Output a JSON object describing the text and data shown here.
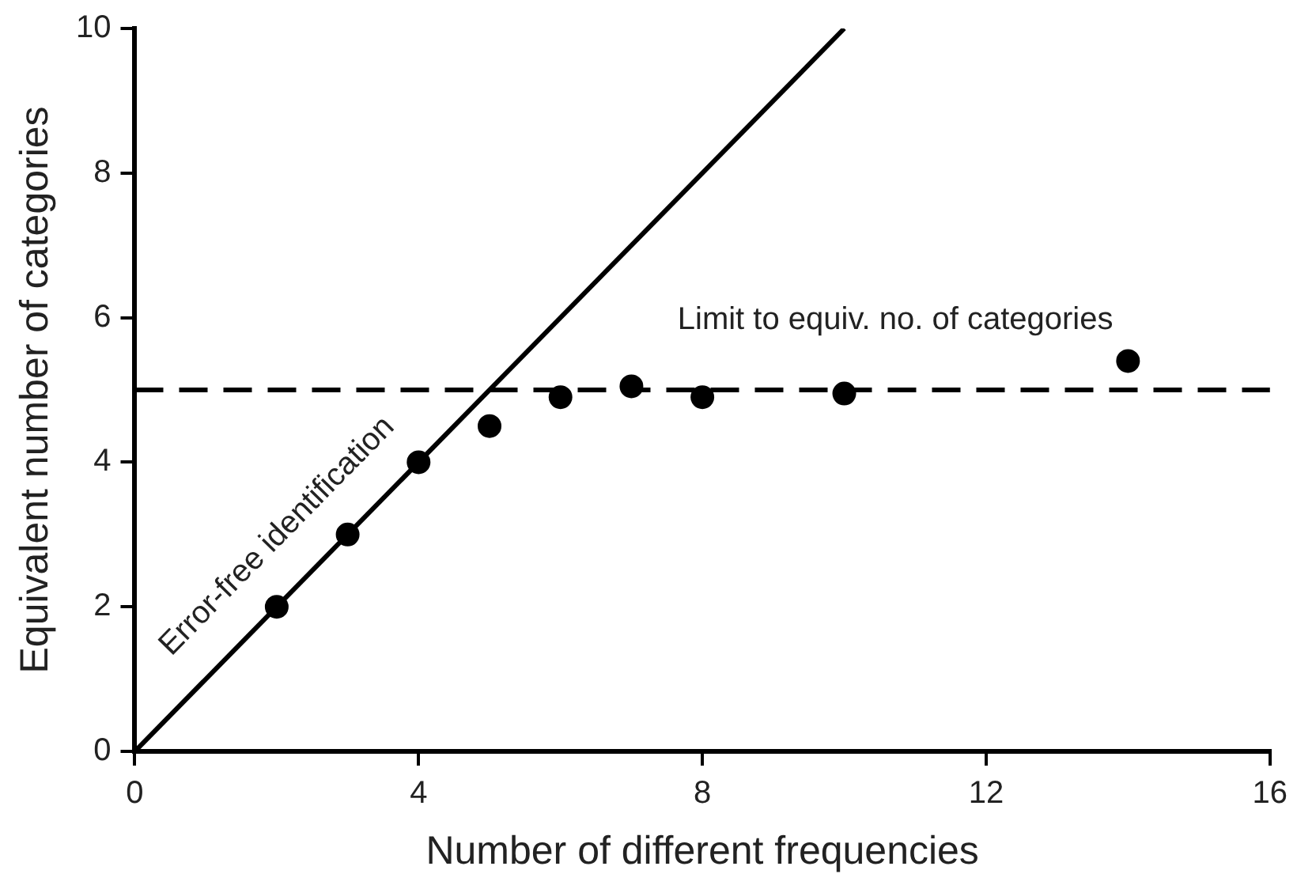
{
  "chart_data": {
    "type": "scatter",
    "xlabel": "Number of different frequencies",
    "ylabel": "Equivalent number of categories",
    "x": [
      2,
      3,
      4,
      5,
      6,
      7,
      8,
      10,
      14
    ],
    "series": [
      {
        "color": "#000000",
        "values": [
          2,
          3,
          4,
          4.5,
          4.9,
          5.05,
          4.9,
          4.95,
          5.4
        ],
        "marker": "circle"
      },
      {
        "type": "line",
        "color": "#000000",
        "x": [
          0,
          10
        ],
        "values": [
          0,
          10
        ],
        "marker": "none",
        "line_style": "solid"
      }
    ],
    "xlim": [
      0,
      16
    ],
    "xticks": [
      0,
      4,
      8,
      12,
      16
    ],
    "ylim": [
      0,
      10
    ],
    "yticks": [
      0,
      2,
      4,
      6,
      8,
      10
    ],
    "grid": false,
    "legend": false,
    "ref_lines": [
      {
        "axis": "y",
        "value": 5,
        "color": "#000000",
        "line_style": "dashed"
      }
    ],
    "annotations": [
      "Error-free identification",
      "Limit to equiv. no. of categories"
    ]
  }
}
